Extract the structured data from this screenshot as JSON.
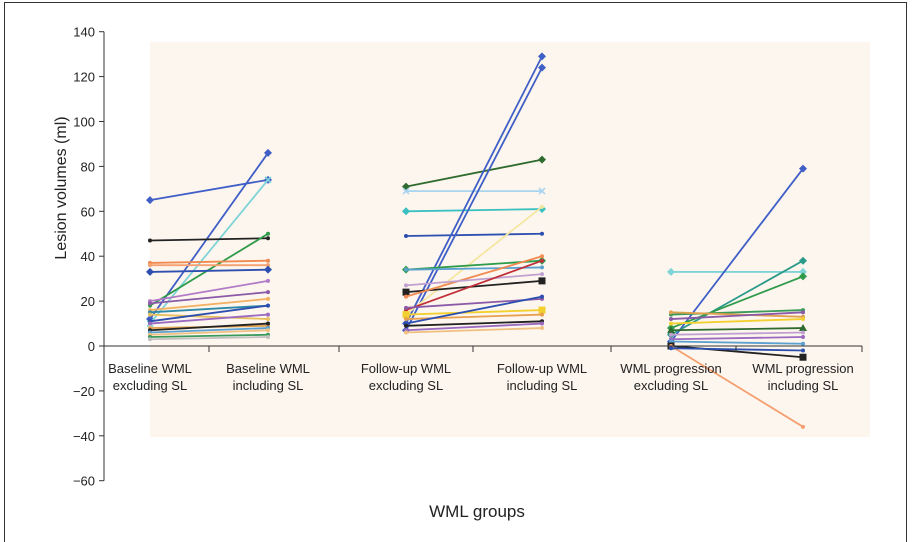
{
  "chart_data": {
    "type": "line",
    "xlabel": "WML groups",
    "ylabel": "Lesion volumes (ml)",
    "ylim": [
      -60,
      140
    ],
    "yticks": [
      140,
      120,
      100,
      80,
      60,
      40,
      20,
      0,
      -20,
      -40,
      -60
    ],
    "ytick_labels": [
      "140",
      "120",
      "100",
      "80",
      "60",
      "40",
      "20",
      "0",
      "−20",
      "−40",
      "−60"
    ],
    "categories": [
      "Baseline WML excluding SL",
      "Baseline WML including SL",
      "Follow-up WML excluding SL",
      "Follow-up WML including SL",
      "WML progression excluding SL",
      "WML progression including SL"
    ],
    "category_lines": [
      [
        "Baseline WML",
        "excluding SL"
      ],
      [
        "Baseline WML",
        "including SL"
      ],
      [
        "Follow-up WML",
        "excluding SL"
      ],
      [
        "Follow-up WML",
        "including SL"
      ],
      [
        "WML progression",
        "excluding SL"
      ],
      [
        "WML progression",
        "including SL"
      ]
    ],
    "pairs": [
      {
        "from": 0,
        "to": 1,
        "series": [
          {
            "a": 65,
            "b": 74,
            "color": "#3f5fc7",
            "marker": "diamond"
          },
          {
            "a": 12,
            "b": 86,
            "color": "#3f5fc7",
            "marker": "diamond"
          },
          {
            "a": 10,
            "b": 74,
            "color": "#7fd4d8",
            "marker": "x"
          },
          {
            "a": 47,
            "b": 48,
            "color": "#222222",
            "marker": "none"
          },
          {
            "a": 18,
            "b": 50,
            "color": "#2e9a4a",
            "marker": "none"
          },
          {
            "a": 37,
            "b": 38,
            "color": "#f08a50",
            "marker": "none"
          },
          {
            "a": 36,
            "b": 36,
            "color": "#f4a070",
            "marker": "none"
          },
          {
            "a": 33,
            "b": 34,
            "color": "#2d4fb0",
            "marker": "diamond"
          },
          {
            "a": 20,
            "b": 29,
            "color": "#b27bc7",
            "marker": "none"
          },
          {
            "a": 19,
            "b": 24,
            "color": "#8a5aa8",
            "marker": "none"
          },
          {
            "a": 16,
            "b": 21,
            "color": "#f3b060",
            "marker": "none"
          },
          {
            "a": 15,
            "b": 18,
            "color": "#2d8aa8",
            "marker": "none"
          },
          {
            "a": 14,
            "b": 12,
            "color": "#e8c060",
            "marker": "none"
          },
          {
            "a": 11,
            "b": 18,
            "color": "#2d4fb0",
            "marker": "none"
          },
          {
            "a": 10,
            "b": 14,
            "color": "#9a6ac0",
            "marker": "none"
          },
          {
            "a": 8,
            "b": 9,
            "color": "#e0a050",
            "marker": "none"
          },
          {
            "a": 7,
            "b": 10,
            "color": "#222222",
            "marker": "none"
          },
          {
            "a": 6,
            "b": 8,
            "color": "#5aa0d0",
            "marker": "none"
          },
          {
            "a": 5,
            "b": 7,
            "color": "#f0c080",
            "marker": "none"
          },
          {
            "a": 4,
            "b": 5,
            "color": "#3a9a5a",
            "marker": "none"
          },
          {
            "a": 3,
            "b": 4,
            "color": "#c0c0c0",
            "marker": "none"
          }
        ]
      },
      {
        "from": 2,
        "to": 3,
        "series": [
          {
            "a": 71,
            "b": 83,
            "color": "#2f6a2f",
            "marker": "diamond"
          },
          {
            "a": 69,
            "b": 69,
            "color": "#a9d4f0",
            "marker": "x"
          },
          {
            "a": 60,
            "b": 61,
            "color": "#3ac0c0",
            "marker": "diamond"
          },
          {
            "a": 49,
            "b": 50,
            "color": "#2d4fb0",
            "marker": "none"
          },
          {
            "a": 10,
            "b": 129,
            "color": "#3f5fc7",
            "marker": "diamond"
          },
          {
            "a": 7,
            "b": 124,
            "color": "#3f5fc7",
            "marker": "diamond"
          },
          {
            "a": 14,
            "b": 62,
            "color": "#f5e6a0",
            "marker": "none"
          },
          {
            "a": 34,
            "b": 38,
            "color": "#2e9a4a",
            "marker": "diamond"
          },
          {
            "a": 34,
            "b": 35,
            "color": "#5aa0d0",
            "marker": "none"
          },
          {
            "a": 24,
            "b": 29,
            "color": "#222222",
            "marker": "square"
          },
          {
            "a": 22,
            "b": 40,
            "color": "#f08a50",
            "marker": "none"
          },
          {
            "a": 27,
            "b": 32,
            "color": "#c0a0d0",
            "marker": "none"
          },
          {
            "a": 16,
            "b": 38,
            "color": "#c0303a",
            "marker": "none"
          },
          {
            "a": 17,
            "b": 21,
            "color": "#8a5aa8",
            "marker": "none"
          },
          {
            "a": 14,
            "b": 16,
            "color": "#f3d030",
            "marker": "square"
          },
          {
            "a": 12,
            "b": 14,
            "color": "#e8a050",
            "marker": "none"
          },
          {
            "a": 10,
            "b": 22,
            "color": "#2d4fb0",
            "marker": "none"
          },
          {
            "a": 9,
            "b": 11,
            "color": "#222222",
            "marker": "none"
          },
          {
            "a": 7,
            "b": 10,
            "color": "#9a6ac0",
            "marker": "none"
          },
          {
            "a": 6,
            "b": 8,
            "color": "#f0c080",
            "marker": "none"
          }
        ]
      },
      {
        "from": 4,
        "to": 5,
        "series": [
          {
            "a": 33,
            "b": 33,
            "color": "#7fd4d8",
            "marker": "diamond"
          },
          {
            "a": 2,
            "b": 79,
            "color": "#3f5fc7",
            "marker": "diamond"
          },
          {
            "a": 5,
            "b": 38,
            "color": "#2a9a8a",
            "marker": "diamond"
          },
          {
            "a": 8,
            "b": 31,
            "color": "#2e9a4a",
            "marker": "diamond"
          },
          {
            "a": 14,
            "b": 16,
            "color": "#3a9a5a",
            "marker": "none"
          },
          {
            "a": 15,
            "b": 13,
            "color": "#e0a050",
            "marker": "none"
          },
          {
            "a": 12,
            "b": 15,
            "color": "#8a5aa8",
            "marker": "none"
          },
          {
            "a": 10,
            "b": 12,
            "color": "#f3d030",
            "marker": "none"
          },
          {
            "a": 7,
            "b": 8,
            "color": "#2f6a2f",
            "marker": "triangle"
          },
          {
            "a": 5,
            "b": 6,
            "color": "#c0a0d0",
            "marker": "none"
          },
          {
            "a": 3,
            "b": 4,
            "color": "#9a6ac0",
            "marker": "none"
          },
          {
            "a": 2,
            "b": 1,
            "color": "#5aa0d0",
            "marker": "none"
          },
          {
            "a": 0,
            "b": -5,
            "color": "#222222",
            "marker": "square"
          },
          {
            "a": 0,
            "b": -36,
            "color": "#f4a070",
            "marker": "none"
          },
          {
            "a": -1,
            "b": -2,
            "color": "#2d4fb0",
            "marker": "none"
          }
        ]
      }
    ]
  }
}
